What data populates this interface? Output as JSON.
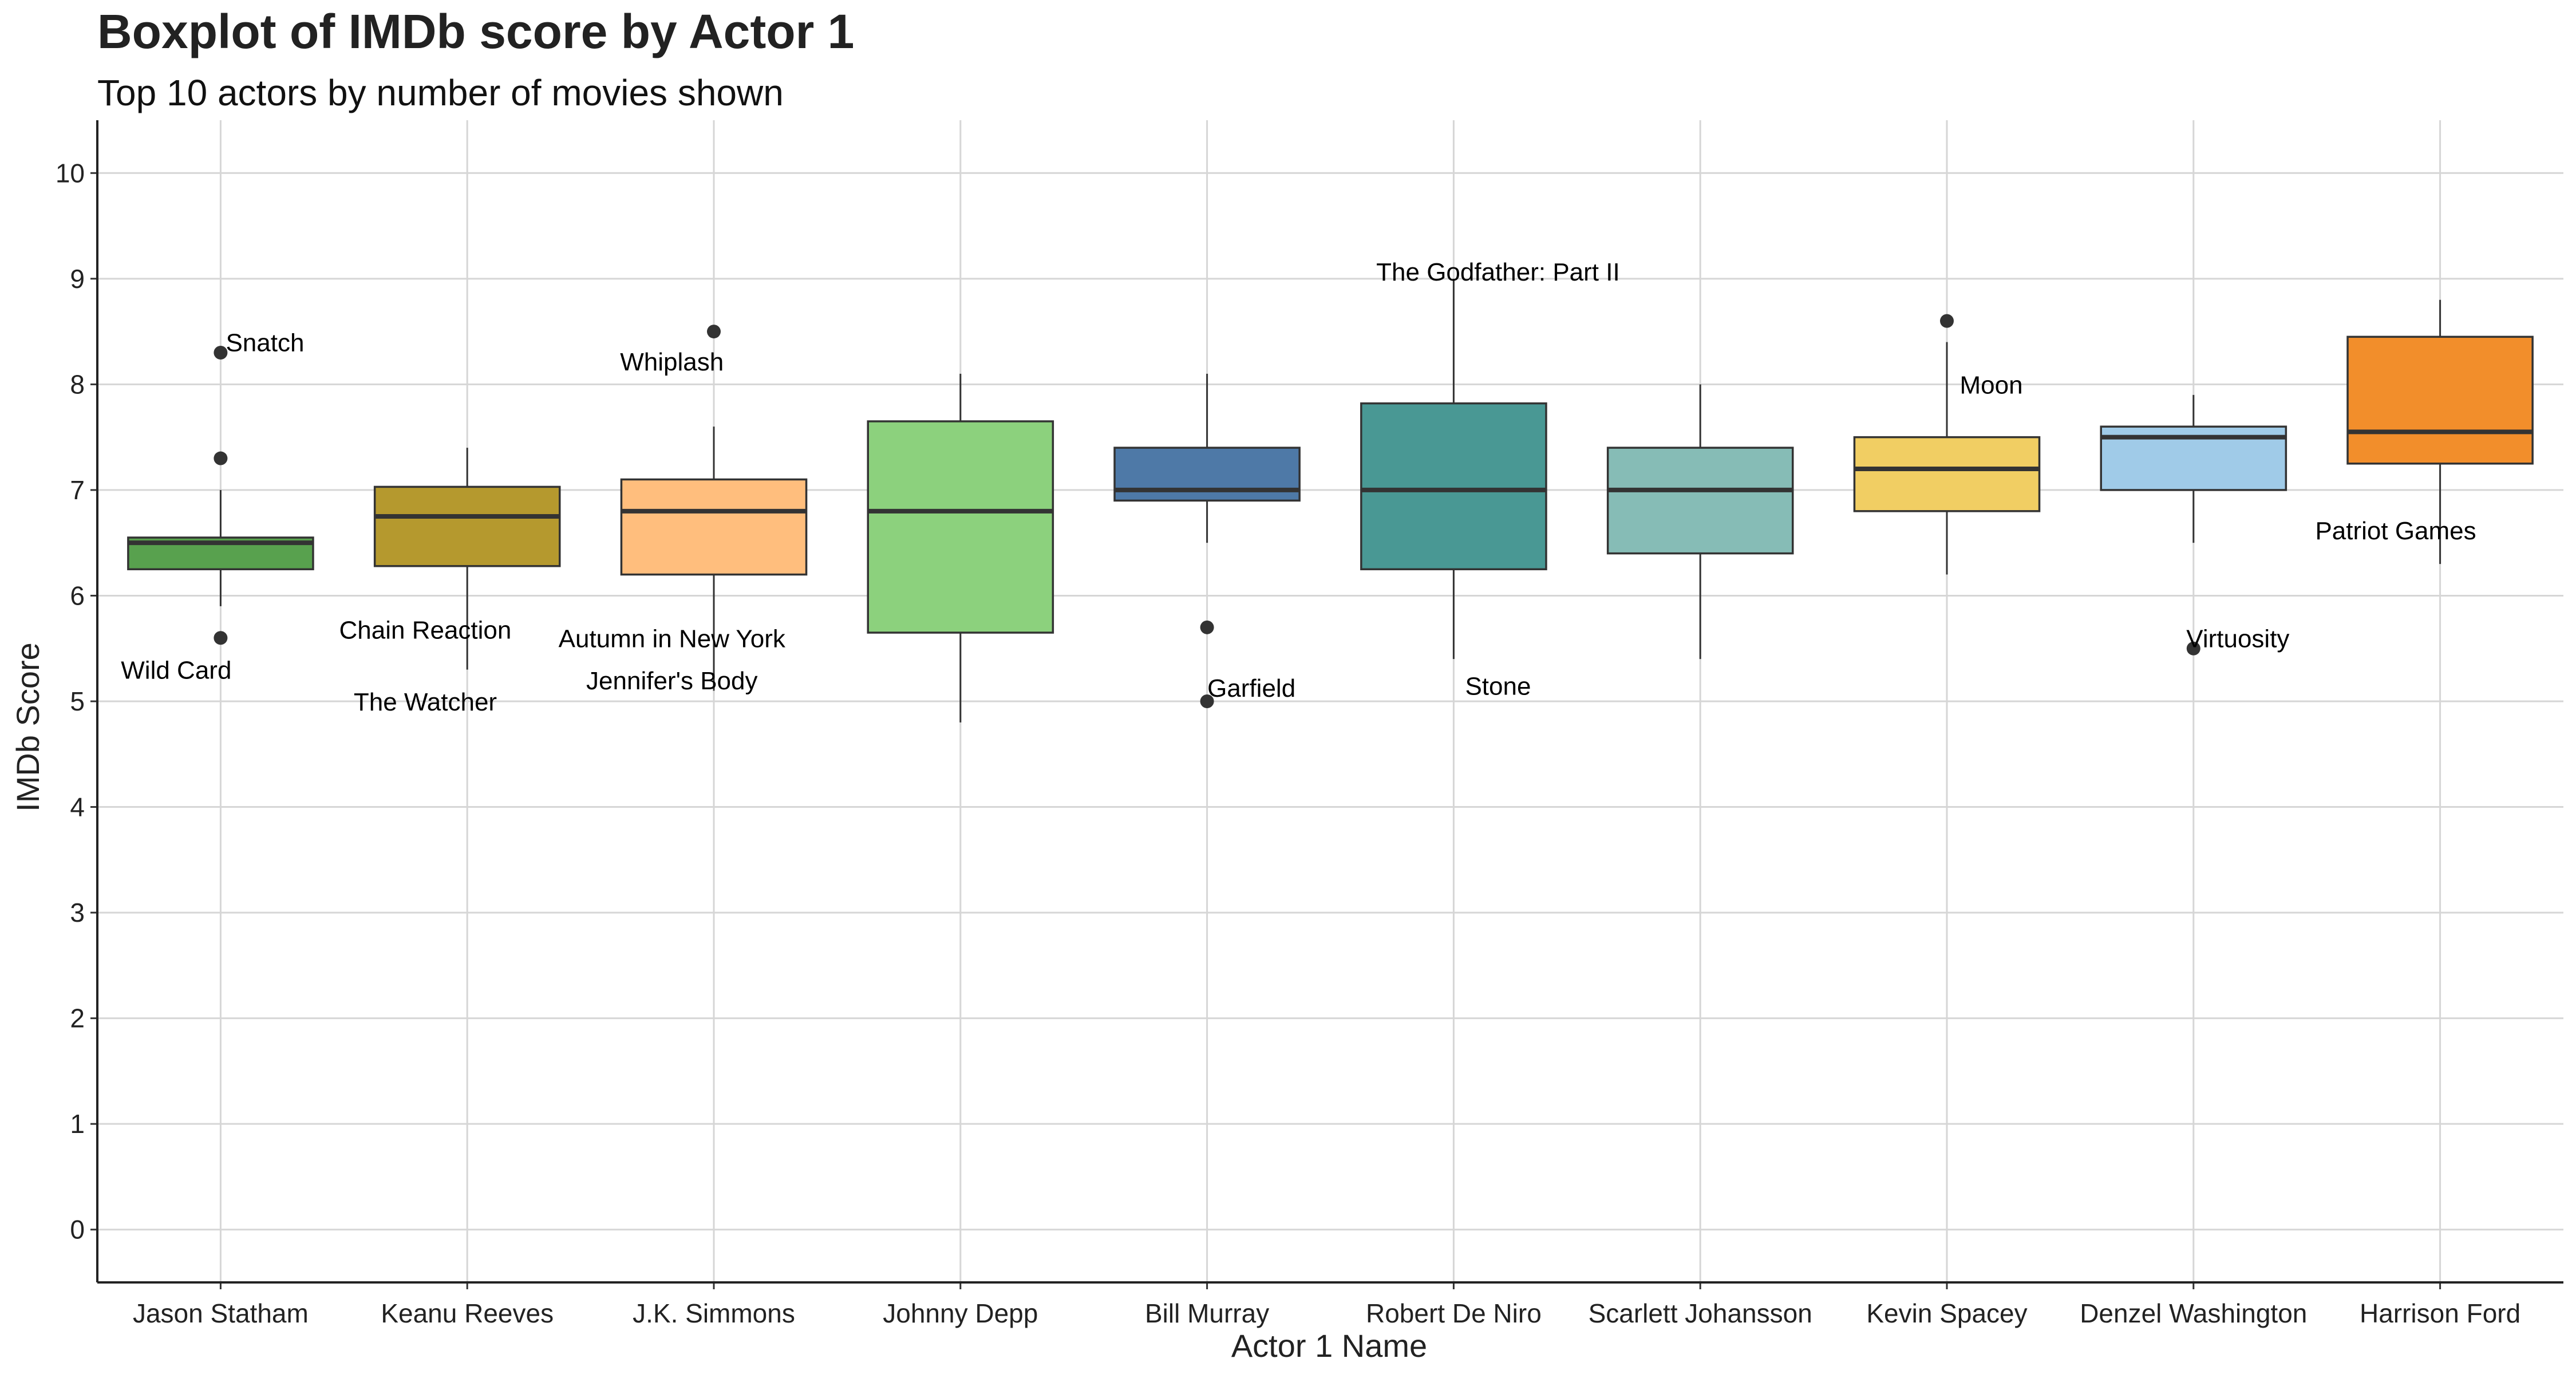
{
  "chart_data": {
    "type": "boxplot",
    "title": "Boxplot of IMDb score by Actor 1",
    "subtitle": "Top 10 actors by number of movies shown",
    "xlabel": "Actor 1 Name",
    "ylabel": "IMDb Score",
    "ylim": [
      -0.5,
      10.5
    ],
    "yticks": [
      "0",
      "1",
      "2",
      "3",
      "4",
      "5",
      "6",
      "7",
      "8",
      "9",
      "10"
    ],
    "grid": true,
    "categories": [
      "Jason Statham",
      "Keanu Reeves",
      "J.K. Simmons",
      "Johnny Depp",
      "Bill Murray",
      "Robert De Niro",
      "Scarlett Johansson",
      "Kevin Spacey",
      "Denzel Washington",
      "Harrison Ford"
    ],
    "boxes": [
      {
        "name": "Jason Statham",
        "color": "#58a14e",
        "q1": 6.25,
        "median": 6.5,
        "q3": 6.55,
        "whisker_low": 5.9,
        "whisker_high": 7.0,
        "outliers": [
          8.3,
          7.3,
          5.6
        ]
      },
      {
        "name": "Keanu Reeves",
        "color": "#b5992e",
        "q1": 6.28,
        "median": 6.75,
        "q3": 7.03,
        "whisker_low": 5.3,
        "whisker_high": 7.4,
        "outliers": []
      },
      {
        "name": "J.K. Simmons",
        "color": "#ffbe7d",
        "q1": 6.2,
        "median": 6.8,
        "q3": 7.1,
        "whisker_low": 5.1,
        "whisker_high": 7.6,
        "outliers": [
          8.5
        ]
      },
      {
        "name": "Johnny Depp",
        "color": "#8cd17d",
        "q1": 5.65,
        "median": 6.8,
        "q3": 7.65,
        "whisker_low": 4.8,
        "whisker_high": 8.1,
        "outliers": []
      },
      {
        "name": "Bill Murray",
        "color": "#4e79a7",
        "q1": 6.9,
        "median": 7.0,
        "q3": 7.4,
        "whisker_low": 6.5,
        "whisker_high": 8.1,
        "outliers": [
          5.7,
          5.0
        ]
      },
      {
        "name": "Robert De Niro",
        "color": "#499894",
        "q1": 6.25,
        "median": 7.0,
        "q3": 7.82,
        "whisker_low": 5.4,
        "whisker_high": 9.0,
        "outliers": []
      },
      {
        "name": "Scarlett Johansson",
        "color": "#86bcb6",
        "q1": 6.4,
        "median": 7.0,
        "q3": 7.4,
        "whisker_low": 5.4,
        "whisker_high": 8.0,
        "outliers": []
      },
      {
        "name": "Kevin Spacey",
        "color": "#f1ce63",
        "q1": 6.8,
        "median": 7.2,
        "q3": 7.5,
        "whisker_low": 6.2,
        "whisker_high": 8.4,
        "outliers": [
          8.6
        ]
      },
      {
        "name": "Denzel Washington",
        "color": "#a0cbe8",
        "q1": 7.0,
        "median": 7.5,
        "q3": 7.6,
        "whisker_low": 6.5,
        "whisker_high": 7.9,
        "outliers": [
          5.5
        ]
      },
      {
        "name": "Harrison Ford",
        "color": "#f28e2b",
        "q1": 7.25,
        "median": 7.55,
        "q3": 8.45,
        "whisker_low": 6.3,
        "whisker_high": 8.8,
        "outliers": []
      }
    ],
    "annotations": [
      {
        "text": "Snatch",
        "cat": 0,
        "dx": 0.18,
        "y": 8.4,
        "anchor": "middle"
      },
      {
        "text": "Wild Card",
        "cat": 0,
        "dx": -0.18,
        "y": 5.3,
        "anchor": "middle"
      },
      {
        "text": "Chain Reaction",
        "cat": 1,
        "dx": -0.17,
        "y": 5.68,
        "anchor": "middle"
      },
      {
        "text": "The Watcher",
        "cat": 1,
        "dx": -0.17,
        "y": 5.0,
        "anchor": "middle"
      },
      {
        "text": "Whiplash",
        "cat": 2,
        "dx": -0.17,
        "y": 8.22,
        "anchor": "middle"
      },
      {
        "text": "Autumn in New York",
        "cat": 2,
        "dx": -0.17,
        "y": 5.6,
        "anchor": "middle"
      },
      {
        "text": "Jennifer's Body",
        "cat": 2,
        "dx": -0.17,
        "y": 5.2,
        "anchor": "middle"
      },
      {
        "text": "Garfield",
        "cat": 4,
        "dx": 0.18,
        "y": 5.13,
        "anchor": "middle"
      },
      {
        "text": "The Godfather: Part II",
        "cat": 5,
        "dx": 0.18,
        "y": 9.07,
        "anchor": "middle"
      },
      {
        "text": "Stone",
        "cat": 5,
        "dx": 0.18,
        "y": 5.15,
        "anchor": "middle"
      },
      {
        "text": "Moon",
        "cat": 7,
        "dx": 0.18,
        "y": 8.0,
        "anchor": "middle"
      },
      {
        "text": "Virtuosity",
        "cat": 8,
        "dx": 0.18,
        "y": 5.6,
        "anchor": "middle"
      },
      {
        "text": "Patriot Games",
        "cat": 9,
        "dx": -0.18,
        "y": 6.62,
        "anchor": "middle"
      }
    ]
  }
}
